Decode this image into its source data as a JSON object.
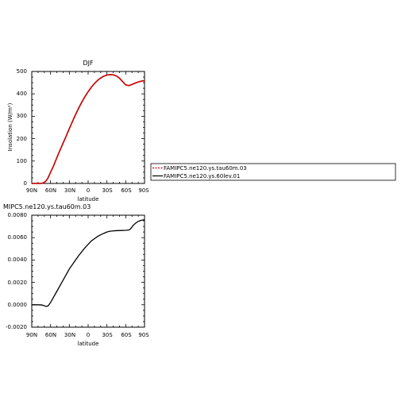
{
  "chart_data": [
    {
      "type": "line",
      "title": "DJF",
      "xlabel": "latitude",
      "ylabel": "Insolation (W/m²)",
      "x_ticks": [
        "90N",
        "60N",
        "30N",
        "0",
        "30S",
        "60S",
        "90S"
      ],
      "x_range": [
        90,
        -90
      ],
      "y_ticks": [
        "0",
        "100",
        "200",
        "300",
        "400",
        "500"
      ],
      "ylim": [
        0,
        500
      ],
      "grid": false,
      "legend_placement": "right",
      "legend": [
        {
          "label": "FAMIPC5.ne120.ys.tau60m.03",
          "color": "#cc0000",
          "dash": true
        },
        {
          "label": "FAMIPC5.ne120.ys.60lev.01",
          "color": "#000000",
          "dash": false
        }
      ],
      "x": [
        90,
        80,
        75,
        72,
        70,
        67,
        64,
        60,
        55,
        50,
        45,
        40,
        35,
        30,
        25,
        20,
        15,
        10,
        5,
        0,
        -5,
        -10,
        -15,
        -20,
        -25,
        -30,
        -35,
        -40,
        -45,
        -50,
        -55,
        -60,
        -65,
        -70,
        -75,
        -80,
        -85,
        -90
      ],
      "series": [
        {
          "name": "FAMIPC5.ne120.ys.tau60m.03",
          "color": "#cc0000",
          "values": [
            0,
            0,
            0,
            2,
            5,
            12,
            25,
            50,
            80,
            115,
            148,
            180,
            212,
            245,
            277,
            308,
            337,
            364,
            388,
            410,
            429,
            446,
            460,
            471,
            479,
            484,
            486,
            485,
            480,
            470,
            455,
            440,
            437,
            442,
            448,
            453,
            457,
            459
          ]
        },
        {
          "name": "FAMIPC5.ne120.ys.60lev.01",
          "color": "#000000",
          "values": [
            0,
            0,
            0,
            2,
            5,
            12,
            25,
            50,
            80,
            115,
            148,
            180,
            212,
            245,
            277,
            308,
            337,
            364,
            388,
            410,
            429,
            446,
            460,
            471,
            479,
            484,
            486,
            485,
            480,
            470,
            455,
            440,
            437,
            442,
            448,
            453,
            457,
            459
          ]
        }
      ]
    },
    {
      "type": "line",
      "title": "MIPC5.ne120.ys.tau60m.03",
      "xlabel": "latitude",
      "ylabel": "",
      "x_ticks": [
        "90N",
        "60N",
        "30N",
        "0",
        "30S",
        "60S",
        "90S"
      ],
      "x_range": [
        90,
        -90
      ],
      "y_ticks": [
        "-0.0020",
        "0.0000",
        "0.0020",
        "0.0040",
        "0.0060",
        "0.0080"
      ],
      "ylim": [
        -0.002,
        0.008
      ],
      "grid": false,
      "x": [
        90,
        80,
        75,
        70,
        67,
        64,
        60,
        55,
        50,
        45,
        40,
        35,
        30,
        25,
        20,
        15,
        10,
        5,
        0,
        -5,
        -10,
        -15,
        -20,
        -25,
        -30,
        -35,
        -40,
        -45,
        -50,
        -55,
        -60,
        -65,
        -68,
        -72,
        -76,
        -80,
        -85,
        -90
      ],
      "series": [
        {
          "color": "#000000",
          "values": [
            0.0,
            0.0,
            -1e-05,
            -8e-05,
            -0.00015,
            -0.0001,
            0.0002,
            0.0007,
            0.0012,
            0.0017,
            0.0022,
            0.0027,
            0.0032,
            0.0036,
            0.004,
            0.0044,
            0.00475,
            0.0051,
            0.0054,
            0.0057,
            0.0059,
            0.0061,
            0.00625,
            0.00638,
            0.0065,
            0.00657,
            0.0066,
            0.00662,
            0.00663,
            0.00664,
            0.00665,
            0.00668,
            0.0068,
            0.0071,
            0.0073,
            0.00745,
            0.00755,
            0.0076
          ]
        }
      ]
    }
  ]
}
